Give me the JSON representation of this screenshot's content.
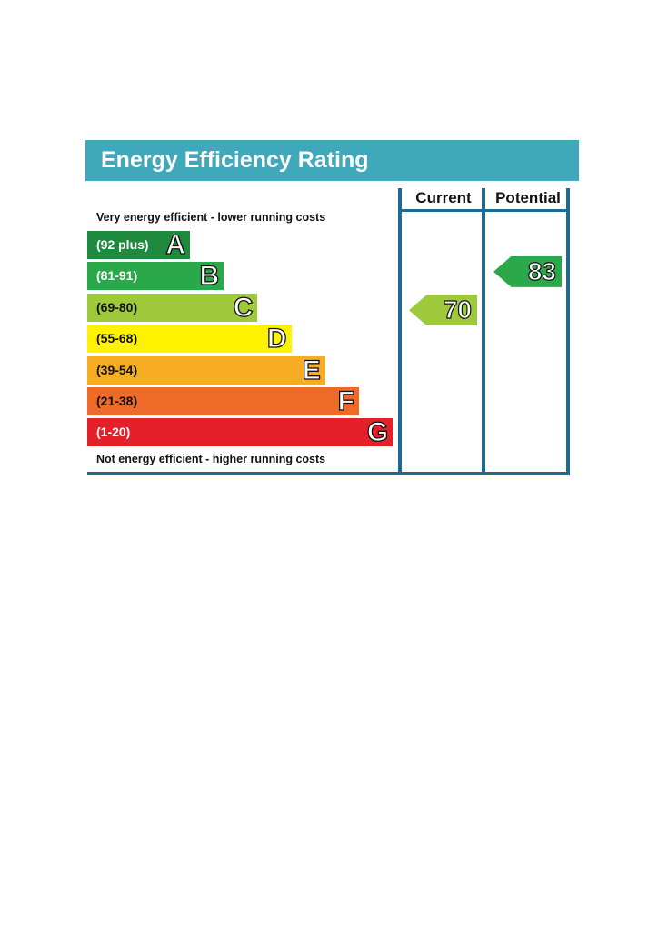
{
  "chart_data": {
    "type": "table",
    "title": "Energy Efficiency Rating",
    "columns": [
      "Current",
      "Potential"
    ],
    "top_note": "Very energy efficient - lower running costs",
    "bottom_note": "Not energy efficient - higher running costs",
    "bands": [
      {
        "letter": "A",
        "range": "(92 plus)",
        "color": "#1d8a3e",
        "text_color": "#ffffff"
      },
      {
        "letter": "B",
        "range": "(81-91)",
        "color": "#2aa84a",
        "text_color": "#ffffff"
      },
      {
        "letter": "C",
        "range": "(69-80)",
        "color": "#9dc93b",
        "text_color": "#111111"
      },
      {
        "letter": "D",
        "range": "(55-68)",
        "color": "#fff200",
        "text_color": "#111111"
      },
      {
        "letter": "E",
        "range": "(39-54)",
        "color": "#f6ad23",
        "text_color": "#111111"
      },
      {
        "letter": "F",
        "range": "(21-38)",
        "color": "#ee6a26",
        "text_color": "#111111"
      },
      {
        "letter": "G",
        "range": "(1-20)",
        "color": "#e4202a",
        "text_color": "#ffffff"
      }
    ],
    "ratings": {
      "current": {
        "value": 70,
        "band": "C",
        "color": "#9dc93b"
      },
      "potential": {
        "value": 83,
        "band": "B",
        "color": "#2aa84a"
      }
    }
  },
  "colors": {
    "header": "#3fa8ba",
    "frame": "#1f6b8f"
  }
}
